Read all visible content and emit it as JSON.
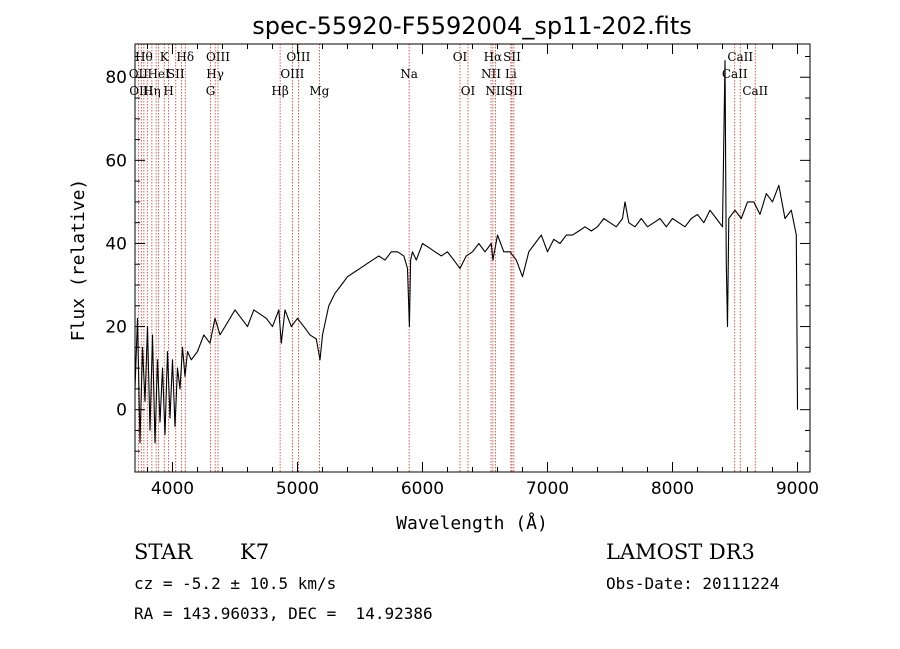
{
  "chart_data": {
    "type": "line",
    "title": "spec-55920-F5592004_sp11-202.fits",
    "xlabel": "Wavelength (Å)",
    "ylabel": "Flux (relative)",
    "xlim": [
      3700,
      9100
    ],
    "ylim": [
      -15,
      88
    ],
    "xticks": [
      4000,
      5000,
      6000,
      7000,
      8000,
      9000
    ],
    "yticks": [
      0,
      20,
      40,
      60,
      80
    ],
    "series": [
      {
        "name": "flux",
        "x": [
          3700,
          3720,
          3740,
          3760,
          3780,
          3800,
          3820,
          3840,
          3860,
          3880,
          3900,
          3920,
          3940,
          3960,
          3980,
          4000,
          4020,
          4040,
          4060,
          4080,
          4100,
          4120,
          4150,
          4200,
          4250,
          4300,
          4340,
          4380,
          4420,
          4460,
          4500,
          4550,
          4600,
          4650,
          4700,
          4750,
          4800,
          4850,
          4870,
          4900,
          4950,
          5000,
          5050,
          5100,
          5150,
          5180,
          5200,
          5250,
          5300,
          5350,
          5400,
          5450,
          5500,
          5550,
          5600,
          5650,
          5700,
          5750,
          5800,
          5850,
          5880,
          5895,
          5905,
          5920,
          5950,
          6000,
          6050,
          6100,
          6150,
          6200,
          6250,
          6300,
          6350,
          6400,
          6450,
          6500,
          6550,
          6563,
          6600,
          6650,
          6700,
          6750,
          6800,
          6850,
          6900,
          6950,
          7000,
          7050,
          7100,
          7150,
          7200,
          7250,
          7300,
          7350,
          7400,
          7450,
          7500,
          7550,
          7600,
          7620,
          7650,
          7700,
          7750,
          7800,
          7850,
          7900,
          7950,
          8000,
          8050,
          8100,
          8150,
          8200,
          8250,
          8300,
          8350,
          8400,
          8420,
          8430,
          8440,
          8450,
          8500,
          8550,
          8600,
          8650,
          8700,
          8750,
          8800,
          8850,
          8900,
          8950,
          8990,
          9000
        ],
        "values": [
          5,
          22,
          -8,
          15,
          2,
          20,
          -5,
          18,
          -8,
          12,
          -3,
          10,
          -6,
          14,
          -2,
          12,
          -4,
          10,
          5,
          15,
          8,
          14,
          12,
          14,
          18,
          16,
          22,
          18,
          20,
          22,
          24,
          22,
          20,
          24,
          23,
          22,
          20,
          24,
          16,
          24,
          20,
          22,
          20,
          18,
          17,
          12,
          18,
          25,
          28,
          30,
          32,
          33,
          34,
          35,
          36,
          37,
          36,
          38,
          38,
          37,
          34,
          20,
          36,
          38,
          36,
          40,
          39,
          38,
          37,
          38,
          36,
          34,
          37,
          38,
          40,
          38,
          40,
          36,
          42,
          38,
          38,
          36,
          32,
          38,
          40,
          42,
          38,
          41,
          40,
          42,
          42,
          43,
          44,
          43,
          44,
          46,
          45,
          44,
          46,
          50,
          45,
          44,
          46,
          44,
          45,
          46,
          44,
          46,
          45,
          44,
          46,
          47,
          45,
          48,
          46,
          44,
          84,
          35,
          20,
          46,
          48,
          46,
          50,
          50,
          47,
          52,
          50,
          54,
          46,
          48,
          42,
          0
        ]
      }
    ],
    "reference_lines": [
      {
        "wavelength": 3727,
        "label": "OII",
        "row": 1
      },
      {
        "wavelength": 3750,
        "label": "OIII",
        "row": 2
      },
      {
        "wavelength": 3771,
        "label": "Hθ",
        "row": 0
      },
      {
        "wavelength": 3798,
        "label": "",
        "row": 0
      },
      {
        "wavelength": 3835,
        "label": "Hη",
        "row": 2
      },
      {
        "wavelength": 3869,
        "label": "",
        "row": 1
      },
      {
        "wavelength": 3889,
        "label": "HeI",
        "row": 1
      },
      {
        "wavelength": 3934,
        "label": "K",
        "row": 0
      },
      {
        "wavelength": 3969,
        "label": "H",
        "row": 2
      },
      {
        "wavelength": 4026,
        "label": "SII",
        "row": 1
      },
      {
        "wavelength": 4072,
        "label": "",
        "row": 1
      },
      {
        "wavelength": 4102,
        "label": "Hδ",
        "row": 0
      },
      {
        "wavelength": 4304,
        "label": "G",
        "row": 2
      },
      {
        "wavelength": 4341,
        "label": "Hγ",
        "row": 1
      },
      {
        "wavelength": 4364,
        "label": "OIII",
        "row": 0
      },
      {
        "wavelength": 4861,
        "label": "Hβ",
        "row": 2
      },
      {
        "wavelength": 4959,
        "label": "OIII",
        "row": 1
      },
      {
        "wavelength": 5007,
        "label": "OIII",
        "row": 0
      },
      {
        "wavelength": 5175,
        "label": "Mg",
        "row": 2
      },
      {
        "wavelength": 5893,
        "label": "Na",
        "row": 1
      },
      {
        "wavelength": 6300,
        "label": "OI",
        "row": 0
      },
      {
        "wavelength": 6364,
        "label": "OI",
        "row": 2
      },
      {
        "wavelength": 6548,
        "label": "NII",
        "row": 1
      },
      {
        "wavelength": 6563,
        "label": "Hα",
        "row": 0
      },
      {
        "wavelength": 6583,
        "label": "NII",
        "row": 2
      },
      {
        "wavelength": 6707,
        "label": "Li",
        "row": 1
      },
      {
        "wavelength": 6716,
        "label": "SII",
        "row": 0
      },
      {
        "wavelength": 6731,
        "label": "SII",
        "row": 2
      },
      {
        "wavelength": 8498,
        "label": "CaII",
        "row": 1
      },
      {
        "wavelength": 8542,
        "label": "CaII",
        "row": 0
      },
      {
        "wavelength": 8662,
        "label": "CaII",
        "row": 2
      }
    ],
    "colors": {
      "spectrum": "#000000",
      "reference": "#c0392b",
      "axes": "#000000"
    }
  },
  "info": {
    "class": "STAR",
    "subclass": "K7",
    "survey": "LAMOST DR3",
    "cz": "cz = -5.2 ± 10.5 km/s",
    "obs_date": "Obs-Date: 20111224",
    "coords": "RA = 143.96033, DEC =  14.92386"
  }
}
